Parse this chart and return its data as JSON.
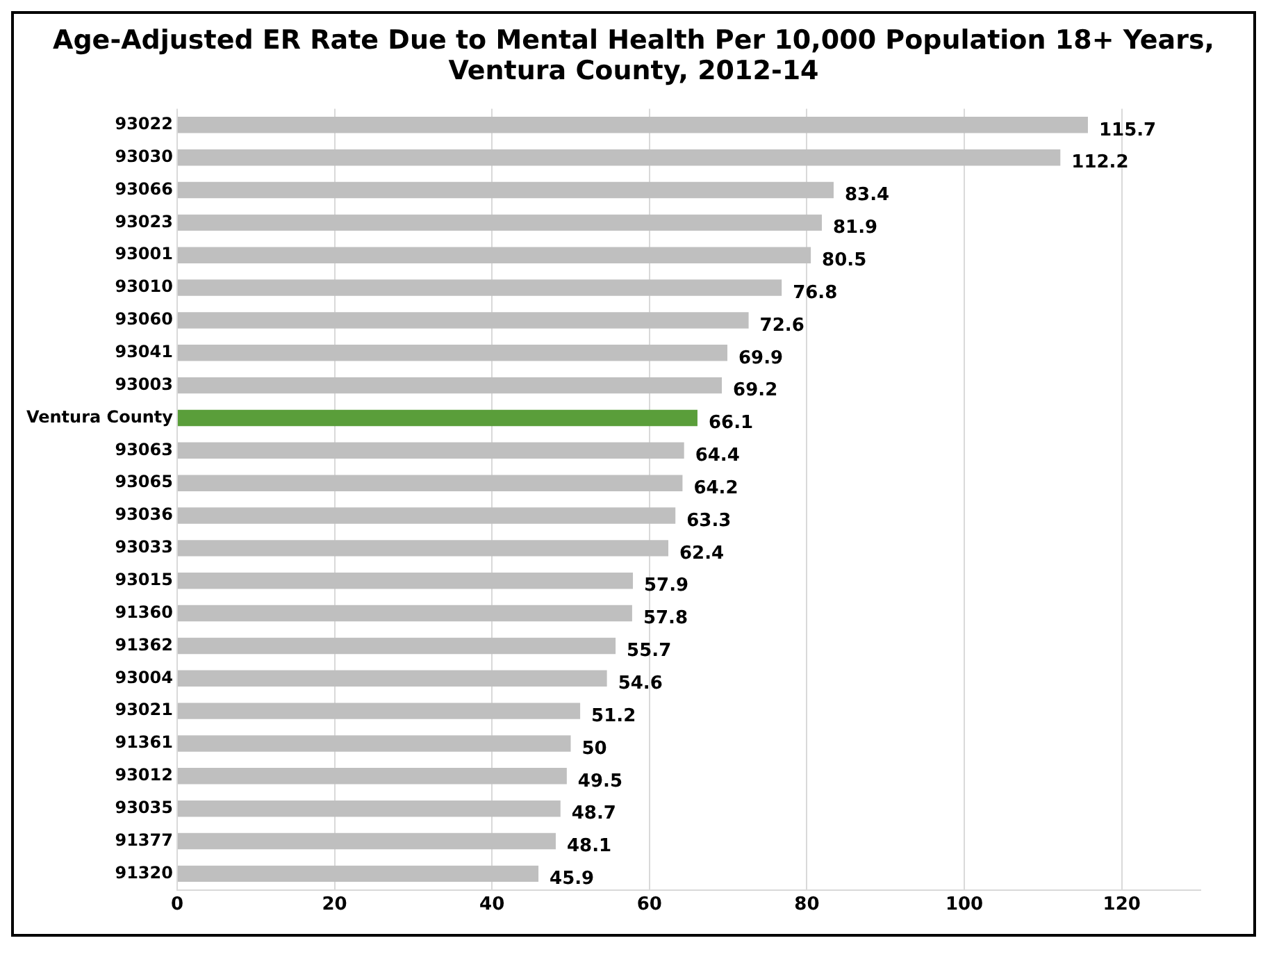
{
  "chart_data": {
    "type": "bar",
    "orientation": "horizontal",
    "title": "Age-Adjusted ER Rate Due to Mental Health Per 10,000 Population 18+ Years, Ventura County, 2012-14",
    "categories": [
      "93022",
      "93030",
      "93066",
      "93023",
      "93001",
      "93010",
      "93060",
      "93041",
      "93003",
      "Ventura County",
      "93063",
      "93065",
      "93036",
      "93033",
      "93015",
      "91360",
      "91362",
      "93004",
      "93021",
      "91361",
      "93012",
      "93035",
      "91377",
      "91320"
    ],
    "values": [
      115.7,
      112.2,
      83.4,
      81.9,
      80.5,
      76.8,
      72.6,
      69.9,
      69.2,
      66.1,
      64.4,
      64.2,
      63.3,
      62.4,
      57.9,
      57.8,
      55.7,
      54.6,
      51.2,
      50,
      49.5,
      48.7,
      48.1,
      45.9
    ],
    "colors": [
      "#bfbfbf",
      "#bfbfbf",
      "#bfbfbf",
      "#bfbfbf",
      "#bfbfbf",
      "#bfbfbf",
      "#bfbfbf",
      "#bfbfbf",
      "#bfbfbf",
      "#5a9e3a",
      "#bfbfbf",
      "#bfbfbf",
      "#bfbfbf",
      "#bfbfbf",
      "#bfbfbf",
      "#bfbfbf",
      "#bfbfbf",
      "#bfbfbf",
      "#bfbfbf",
      "#bfbfbf",
      "#bfbfbf",
      "#bfbfbf",
      "#bfbfbf",
      "#bfbfbf"
    ],
    "xlim": [
      0,
      130
    ],
    "xticks": [
      0,
      20,
      40,
      60,
      80,
      100,
      120
    ],
    "grid": "x",
    "legend": false,
    "data_labels": true
  }
}
